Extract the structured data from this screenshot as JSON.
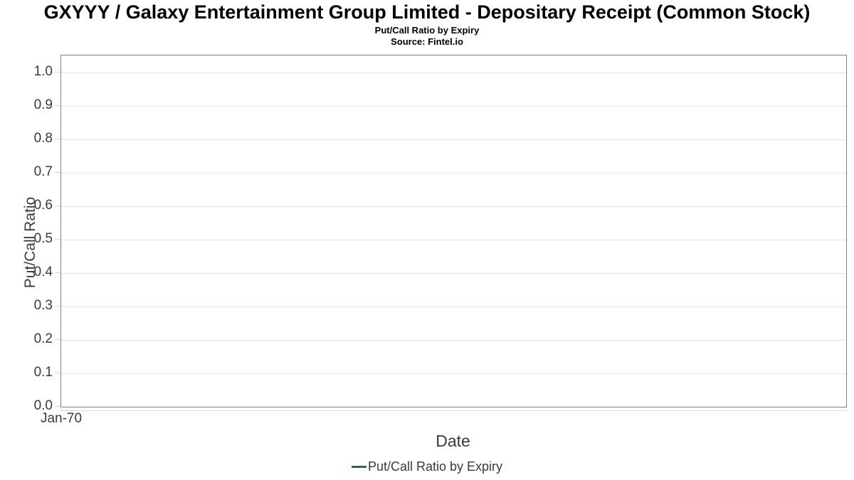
{
  "header": {
    "title": "GXYYY / Galaxy Entertainment Group Limited - Depositary Receipt (Common Stock)",
    "subtitle": "Put/Call Ratio by Expiry",
    "source": "Source: Fintel.io"
  },
  "chart_data": {
    "type": "line",
    "title": "Put/Call Ratio by Expiry",
    "xlabel": "Date",
    "ylabel": "Put/Call Ratio",
    "xtick_labels": [
      "Jan-70"
    ],
    "ytick_labels": [
      "0.0",
      "0.1",
      "0.2",
      "0.3",
      "0.4",
      "0.5",
      "0.6",
      "0.7",
      "0.8",
      "0.9",
      "1.0"
    ],
    "ylim": [
      0,
      1.05
    ],
    "grid": "horizontal",
    "legend_position": "bottom-center",
    "series": [
      {
        "name": "Put/Call Ratio by Expiry",
        "color": "#2d6a3f",
        "x": [],
        "values": []
      }
    ],
    "colors": {
      "plot_border": "#808080",
      "gridline": "#e5e5e5",
      "tick": "#d9d9d9",
      "axis_text": "#3a3a3a",
      "title_text": "#000000",
      "background": "#ffffff"
    }
  }
}
